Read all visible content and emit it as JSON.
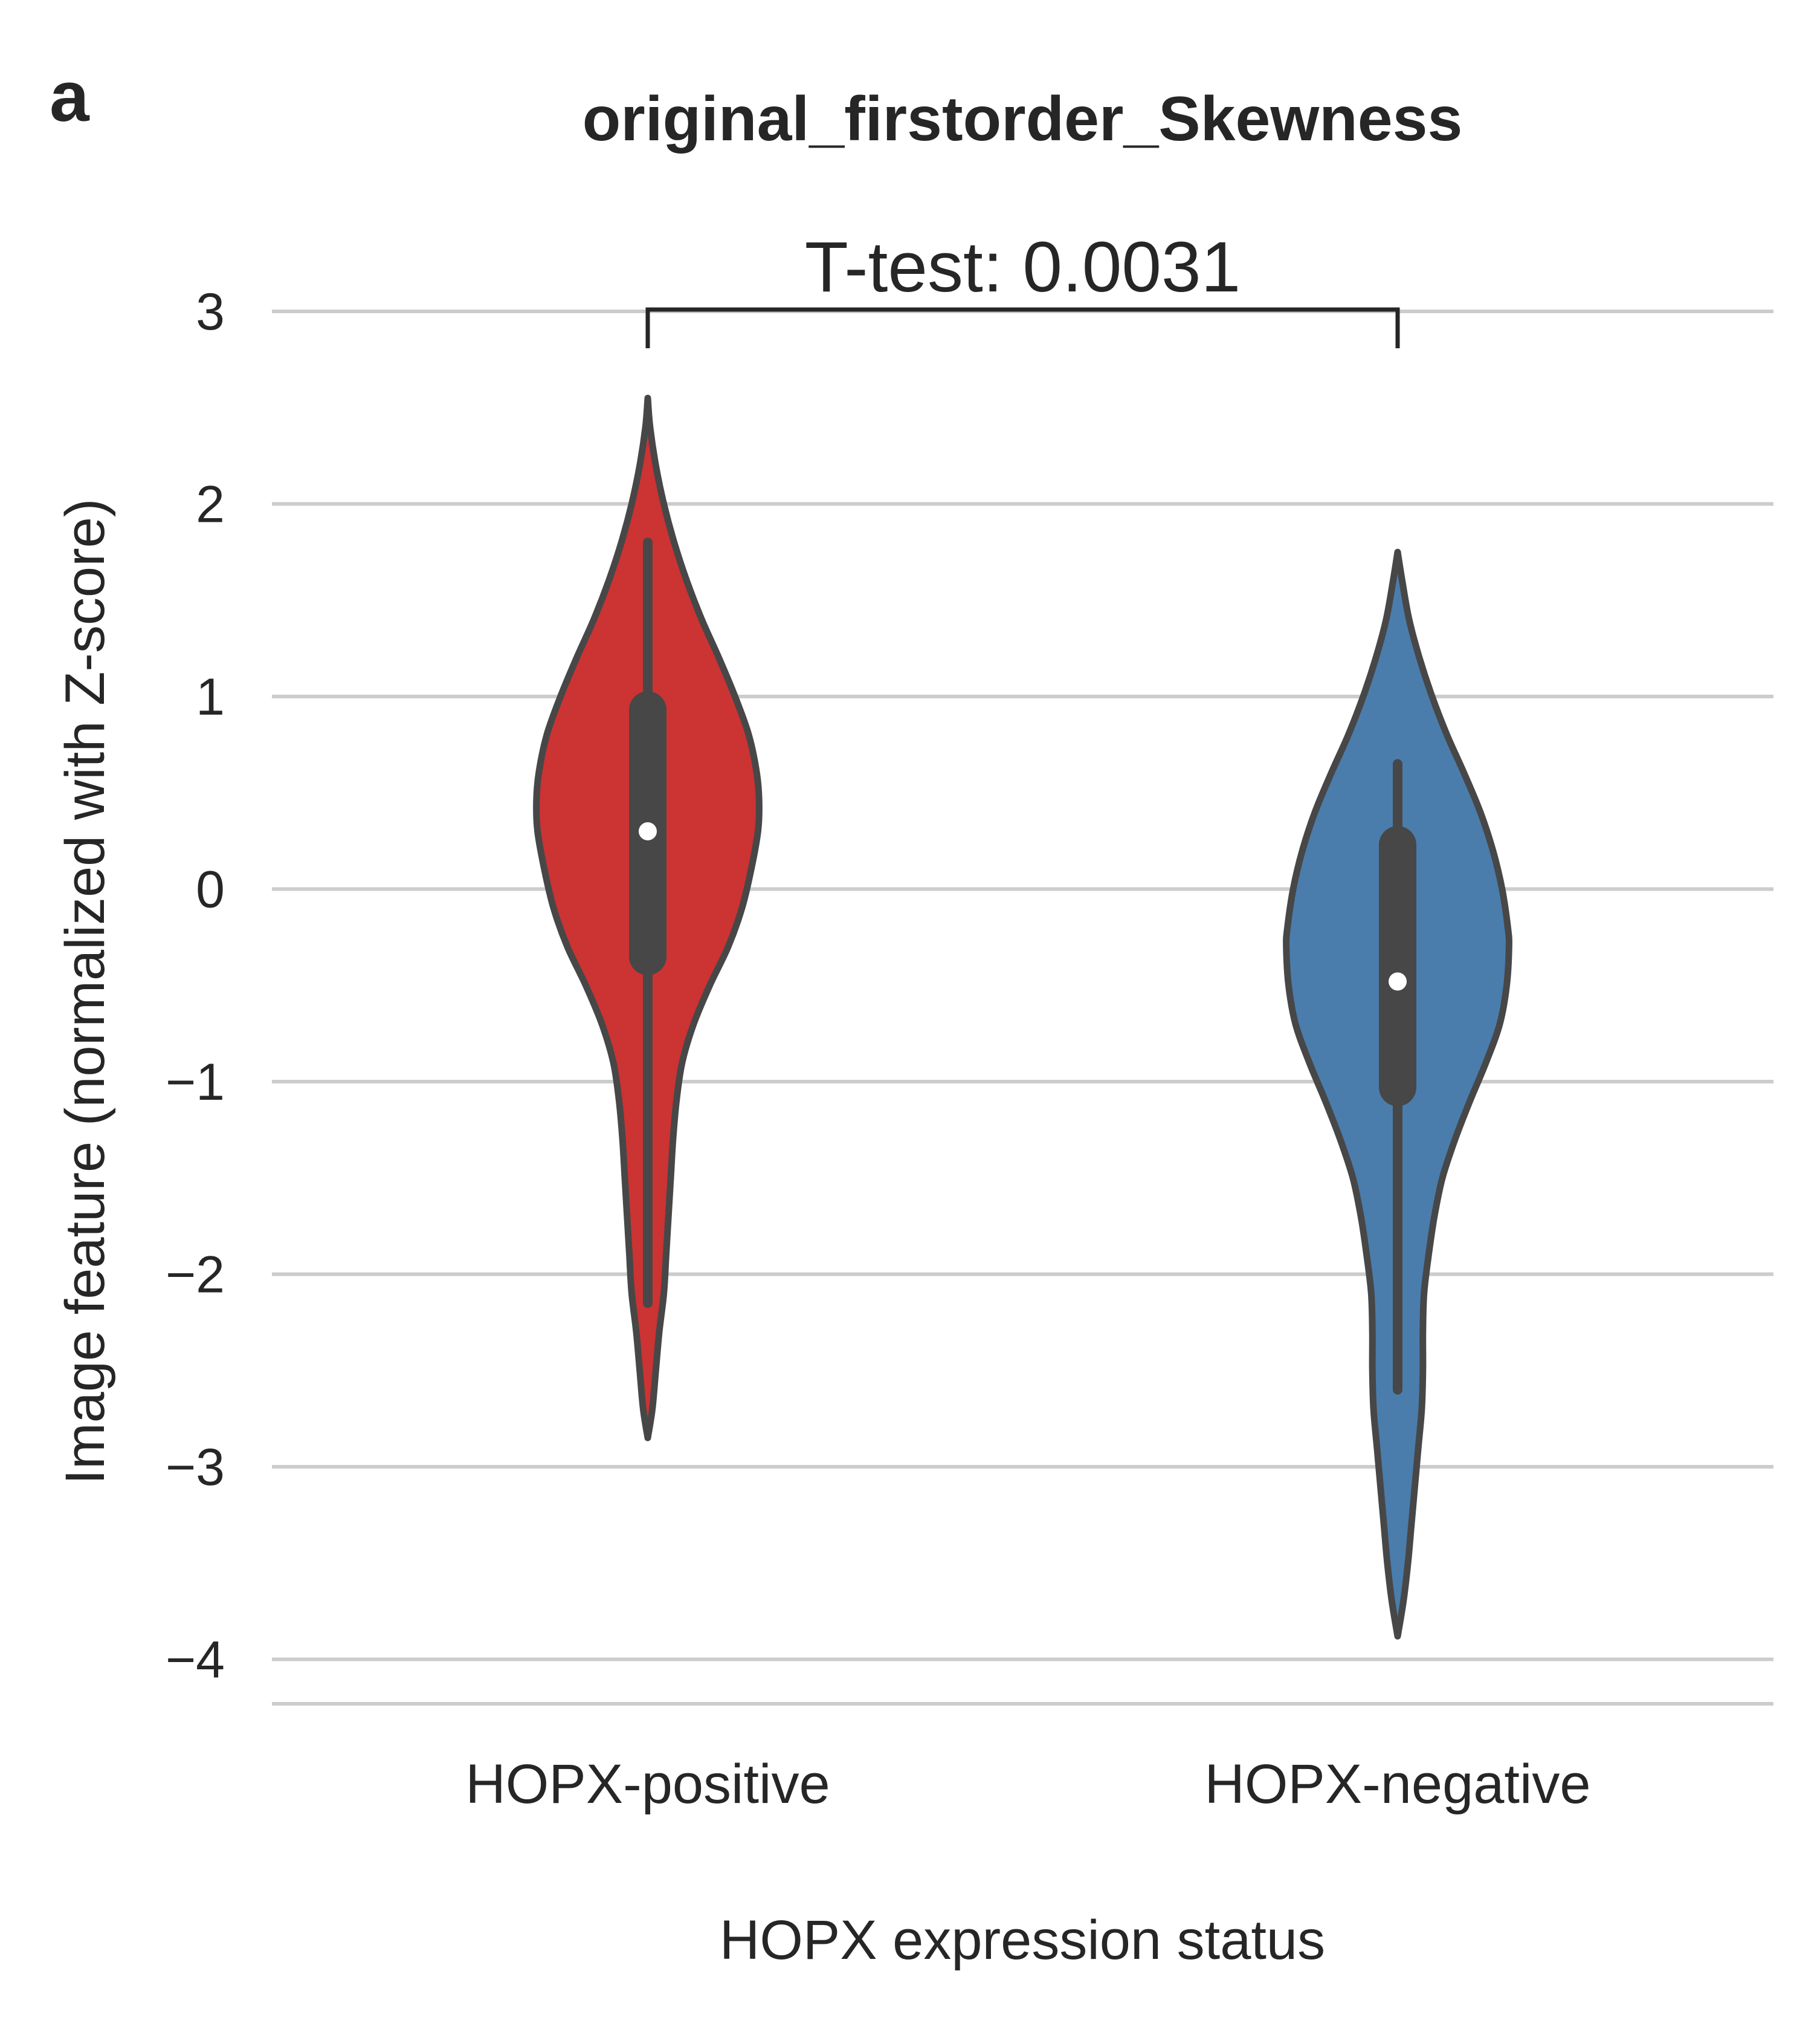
{
  "panel_label": "a",
  "colors": {
    "positive": "#cc3333",
    "negative": "#4a7dac",
    "outline": "#474747",
    "grid": "#cccccc",
    "text": "#262626"
  },
  "chart_data": {
    "type": "violin",
    "title": "original_firstorder_Skewness",
    "xlabel": "HOPX expression status",
    "ylabel": "Image feature (normalized with Z-score)",
    "ylim": [
      -4.25,
      3.25
    ],
    "yticks": [
      3,
      2,
      1,
      0,
      -1,
      -2,
      -3,
      -4
    ],
    "ytick_labels": [
      "3",
      "2",
      "1",
      "0",
      "−1",
      "−2",
      "−3",
      "−4"
    ],
    "grid": "horizontal",
    "categories": [
      "HOPX-positive",
      "HOPX-negative"
    ],
    "violins": [
      {
        "category": "HOPX-positive",
        "color": "#cc3333",
        "median": 0.3,
        "q1": -0.35,
        "q3": 0.93,
        "whisker_low": -2.15,
        "whisker_high": 1.8,
        "profile": [
          [
            2.55,
            0
          ],
          [
            2.4,
            0.02
          ],
          [
            2.2,
            0.07
          ],
          [
            2.0,
            0.14
          ],
          [
            1.8,
            0.23
          ],
          [
            1.6,
            0.34
          ],
          [
            1.4,
            0.47
          ],
          [
            1.2,
            0.62
          ],
          [
            1.0,
            0.76
          ],
          [
            0.8,
            0.88
          ],
          [
            0.6,
            0.95
          ],
          [
            0.45,
            0.97
          ],
          [
            0.3,
            0.96
          ],
          [
            0.1,
            0.9
          ],
          [
            -0.1,
            0.82
          ],
          [
            -0.3,
            0.7
          ],
          [
            -0.5,
            0.54
          ],
          [
            -0.7,
            0.4
          ],
          [
            -0.9,
            0.3
          ],
          [
            -1.1,
            0.25
          ],
          [
            -1.3,
            0.22
          ],
          [
            -1.5,
            0.2
          ],
          [
            -1.7,
            0.18
          ],
          [
            -1.9,
            0.16
          ],
          [
            -2.1,
            0.14
          ],
          [
            -2.3,
            0.1
          ],
          [
            -2.5,
            0.07
          ],
          [
            -2.7,
            0.04
          ],
          [
            -2.85,
            0
          ]
        ]
      },
      {
        "category": "HOPX-negative",
        "color": "#4a7dac",
        "median": -0.48,
        "q1": -1.03,
        "q3": 0.23,
        "whisker_low": -2.6,
        "whisker_high": 0.65,
        "profile": [
          [
            1.75,
            0
          ],
          [
            1.6,
            0.04
          ],
          [
            1.4,
            0.1
          ],
          [
            1.2,
            0.19
          ],
          [
            1.0,
            0.3
          ],
          [
            0.8,
            0.43
          ],
          [
            0.6,
            0.58
          ],
          [
            0.4,
            0.72
          ],
          [
            0.2,
            0.83
          ],
          [
            0.0,
            0.91
          ],
          [
            -0.2,
            0.96
          ],
          [
            -0.3,
            0.97
          ],
          [
            -0.5,
            0.95
          ],
          [
            -0.7,
            0.89
          ],
          [
            -0.9,
            0.77
          ],
          [
            -1.1,
            0.63
          ],
          [
            -1.3,
            0.5
          ],
          [
            -1.5,
            0.39
          ],
          [
            -1.7,
            0.32
          ],
          [
            -1.9,
            0.27
          ],
          [
            -2.1,
            0.23
          ],
          [
            -2.3,
            0.22
          ],
          [
            -2.5,
            0.22
          ],
          [
            -2.7,
            0.21
          ],
          [
            -2.9,
            0.18
          ],
          [
            -3.1,
            0.15
          ],
          [
            -3.3,
            0.12
          ],
          [
            -3.5,
            0.09
          ],
          [
            -3.7,
            0.05
          ],
          [
            -3.88,
            0
          ]
        ]
      }
    ],
    "annotation": {
      "text": "T-test: 0.0031",
      "between": [
        "HOPX-positive",
        "HOPX-negative"
      ],
      "y": 3.0
    }
  }
}
